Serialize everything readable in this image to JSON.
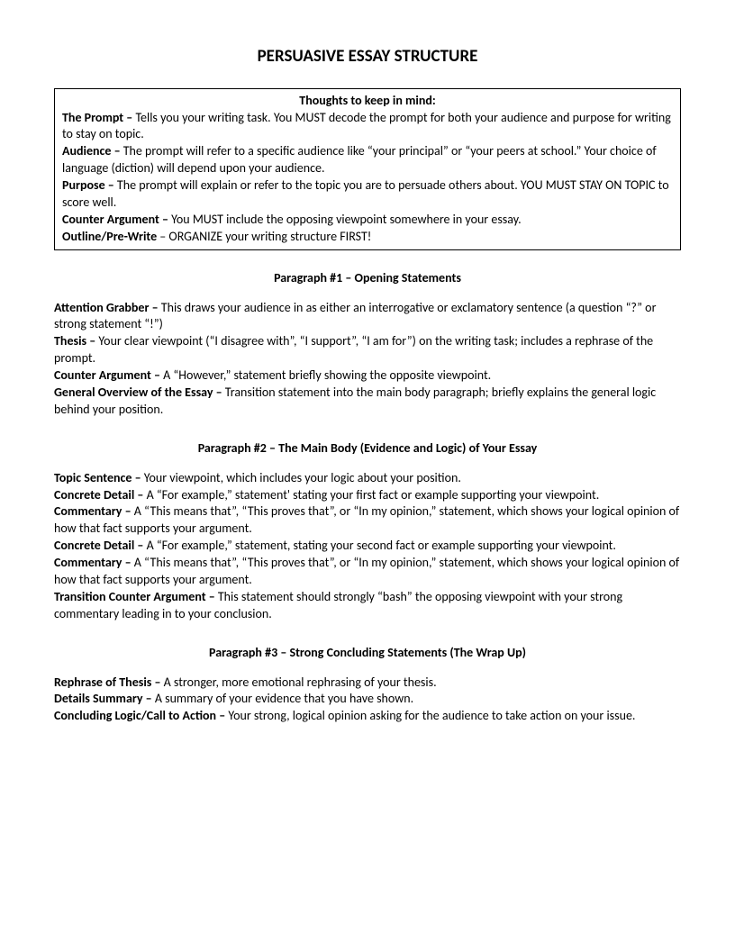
{
  "title": "PERSUASIVE ESSAY STRUCTURE",
  "thoughtsBox": {
    "heading": "Thoughts to keep in mind:",
    "items": [
      {
        "term": "The Prompt – ",
        "desc": "Tells you your writing task.  You MUST decode the prompt for both your audience and purpose for writing to stay on topic."
      },
      {
        "term": "Audience – ",
        "desc": "The prompt will refer to a specific audience like “your principal” or “your peers at school.”  Your choice of language (diction) will depend upon your audience."
      },
      {
        "term": "Purpose – ",
        "desc": "The prompt will explain or refer to the topic you are to persuade others about.  YOU MUST STAY ON TOPIC to score well."
      },
      {
        "term": "Counter Argument – ",
        "desc": "You MUST include the opposing viewpoint somewhere in your essay."
      },
      {
        "term": "Outline/Pre-Write",
        "desc": " – ORGANIZE your writing structure FIRST!"
      }
    ]
  },
  "sections": [
    {
      "heading": "Paragraph #1 – Opening Statements",
      "items": [
        {
          "term": "Attention Grabber – ",
          "desc": "This draws your audience in as either an interrogative or exclamatory sentence (a question “?” or strong statement “!”)"
        },
        {
          "term": "Thesis – ",
          "desc": "Your clear viewpoint (“I disagree with”, “I support”, “I am for”) on the writing task; includes a rephrase of the prompt."
        },
        {
          "term": "Counter Argument – ",
          "desc": "A “However,” statement briefly showing the opposite viewpoint."
        },
        {
          "term": "General Overview of the Essay – ",
          "desc": "Transition statement into the main body paragraph; briefly explains the general logic behind your position."
        }
      ]
    },
    {
      "heading": "Paragraph #2 – The Main Body (Evidence and Logic) of Your Essay",
      "items": [
        {
          "term": "Topic Sentence – ",
          "desc": "Your viewpoint, which includes your logic about your position."
        },
        {
          "term": "Concrete Detail – ",
          "desc": "A “For example,” statement' stating your first fact or example supporting your viewpoint."
        },
        {
          "term": "Commentary – ",
          "desc": "A “This means that”, “This proves that”, or “In my opinion,” statement, which shows your logical opinion of how that fact supports your argument."
        },
        {
          "term": "Concrete Detail – ",
          "desc": "A “For example,” statement, stating your second fact or example supporting your viewpoint."
        },
        {
          "term": "Commentary – ",
          "desc": "A “This means that”, “This proves that”, or “In my opinion,” statement, which shows your logical opinion of how that fact supports your argument."
        },
        {
          "term": "Transition Counter Argument – ",
          "desc": "This statement should strongly “bash” the opposing viewpoint with your strong commentary leading in to your conclusion."
        }
      ]
    },
    {
      "heading": "Paragraph #3 – Strong Concluding Statements (The Wrap Up)",
      "items": [
        {
          "term": "Rephrase of Thesis – ",
          "desc": "A stronger, more emotional rephrasing of your thesis."
        },
        {
          "term": "Details Summary – ",
          "desc": "A summary of your evidence that you have shown."
        },
        {
          "term": "Concluding Logic/Call to Action – ",
          "desc": "Your strong, logical opinion asking for the audience to take action on your issue."
        }
      ]
    }
  ]
}
